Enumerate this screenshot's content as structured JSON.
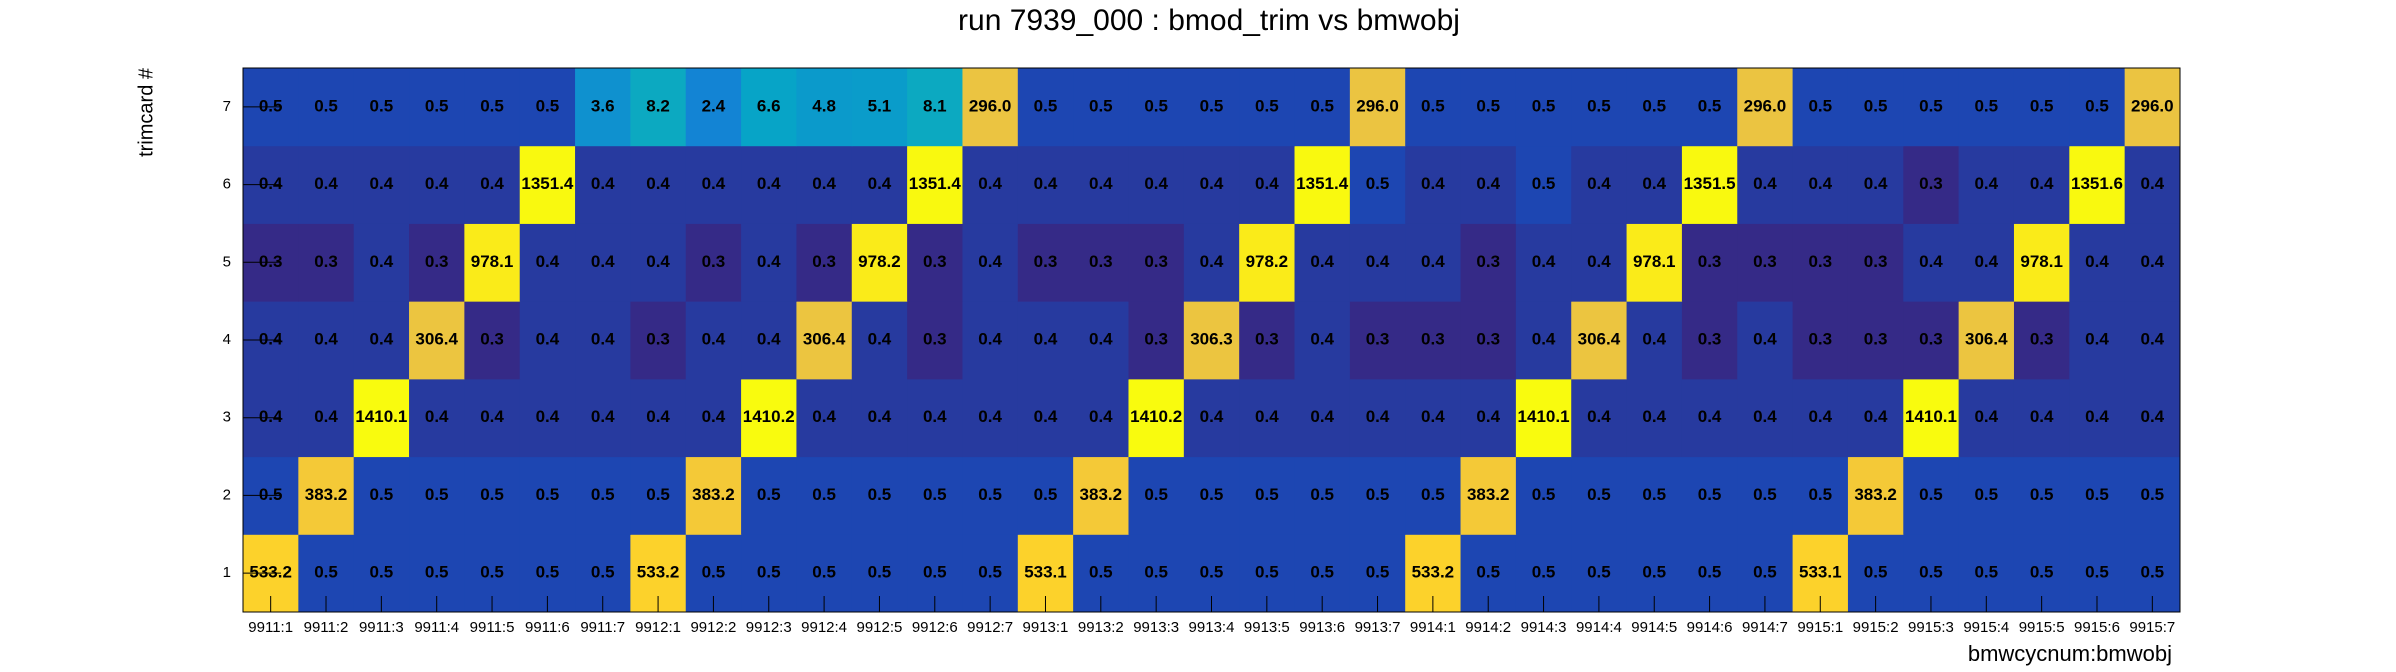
{
  "chart_data": {
    "type": "heatmap",
    "title": "run 7939_000 : bmod_trim vs bmwobj",
    "x_label": "bmwcycnum:bmwobj",
    "y_label": "trimcard #",
    "categories": [
      "9911:1",
      "9911:2",
      "9911:3",
      "9911:4",
      "9911:5",
      "9911:6",
      "9911:7",
      "9912:1",
      "9912:2",
      "9912:3",
      "9912:4",
      "9912:5",
      "9912:6",
      "9912:7",
      "9913:1",
      "9913:2",
      "9913:3",
      "9913:4",
      "9913:5",
      "9913:6",
      "9913:7",
      "9914:1",
      "9914:2",
      "9914:3",
      "9914:4",
      "9914:5",
      "9914:6",
      "9914:7",
      "9915:1",
      "9915:2",
      "9915:3",
      "9915:4",
      "9915:5",
      "9915:6",
      "9915:7"
    ],
    "ylim": [
      0.5,
      7.5
    ],
    "yticks": [
      1,
      2,
      3,
      4,
      5,
      6,
      7
    ],
    "logz": true,
    "palette": [
      "#352a87",
      "#0363e1",
      "#1485d4",
      "#06a7c6",
      "#38b99e",
      "#92bf73",
      "#d9ba56",
      "#fcce2e",
      "#f9fb0e"
    ],
    "z": [
      [
        533.2,
        0.5,
        0.5,
        0.5,
        0.5,
        0.5,
        0.5,
        533.2,
        0.5,
        0.5,
        0.5,
        0.5,
        0.5,
        0.5,
        533.1,
        0.5,
        0.5,
        0.5,
        0.5,
        0.5,
        0.5,
        533.2,
        0.5,
        0.5,
        0.5,
        0.5,
        0.5,
        0.5,
        533.1,
        0.5,
        0.5,
        0.5,
        0.5,
        0.5,
        0.5
      ],
      [
        0.5,
        383.2,
        0.5,
        0.5,
        0.5,
        0.5,
        0.5,
        0.5,
        383.2,
        0.5,
        0.5,
        0.5,
        0.5,
        0.5,
        0.5,
        383.2,
        0.5,
        0.5,
        0.5,
        0.5,
        0.5,
        0.5,
        383.2,
        0.5,
        0.5,
        0.5,
        0.5,
        0.5,
        0.5,
        383.2,
        0.5,
        0.5,
        0.5,
        0.5,
        0.5
      ],
      [
        0.4,
        0.4,
        1410.1,
        0.4,
        0.4,
        0.4,
        0.4,
        0.4,
        0.4,
        1410.2,
        0.4,
        0.4,
        0.4,
        0.4,
        0.4,
        0.4,
        1410.2,
        0.4,
        0.4,
        0.4,
        0.4,
        0.4,
        0.4,
        1410.1,
        0.4,
        0.4,
        0.4,
        0.4,
        0.4,
        0.4,
        1410.1,
        0.4,
        0.4,
        0.4,
        0.4
      ],
      [
        0.4,
        0.4,
        0.4,
        306.4,
        0.3,
        0.4,
        0.4,
        0.3,
        0.4,
        0.4,
        306.4,
        0.4,
        0.3,
        0.4,
        0.4,
        0.4,
        0.3,
        306.3,
        0.3,
        0.4,
        0.3,
        0.3,
        0.3,
        0.4,
        306.4,
        0.4,
        0.3,
        0.4,
        0.3,
        0.3,
        0.3,
        306.4,
        0.3,
        0.4,
        0.4
      ],
      [
        0.3,
        0.3,
        0.4,
        0.3,
        978.1,
        0.4,
        0.4,
        0.4,
        0.3,
        0.4,
        0.3,
        978.2,
        0.3,
        0.4,
        0.3,
        0.3,
        0.3,
        0.4,
        978.2,
        0.4,
        0.4,
        0.4,
        0.3,
        0.4,
        0.4,
        978.1,
        0.3,
        0.3,
        0.3,
        0.3,
        0.4,
        0.4,
        978.1,
        0.4,
        0.4
      ],
      [
        0.4,
        0.4,
        0.4,
        0.4,
        0.4,
        1351.4,
        0.4,
        0.4,
        0.4,
        0.4,
        0.4,
        0.4,
        1351.4,
        0.4,
        0.4,
        0.4,
        0.4,
        0.4,
        0.4,
        1351.4,
        0.5,
        0.4,
        0.4,
        0.5,
        0.4,
        0.4,
        1351.5,
        0.4,
        0.4,
        0.4,
        0.3,
        0.4,
        0.4,
        1351.6,
        0.4
      ],
      [
        0.5,
        0.5,
        0.5,
        0.5,
        0.5,
        0.5,
        3.6,
        8.2,
        2.4,
        6.6,
        4.8,
        5.1,
        8.1,
        296,
        0.5,
        0.5,
        0.5,
        0.5,
        0.5,
        0.5,
        296,
        0.5,
        0.5,
        0.5,
        0.5,
        0.5,
        0.5,
        296,
        0.5,
        0.5,
        0.5,
        0.5,
        0.5,
        0.5,
        296
      ]
    ],
    "value_labels": [
      [
        "533.2",
        "0.5",
        "0.5",
        "0.5",
        "0.5",
        "0.5",
        "0.5",
        "533.2",
        "0.5",
        "0.5",
        "0.5",
        "0.5",
        "0.5",
        "0.5",
        "533.1",
        "0.5",
        "0.5",
        "0.5",
        "0.5",
        "0.5",
        "0.5",
        "533.2",
        "0.5",
        "0.5",
        "0.5",
        "0.5",
        "0.5",
        "0.5",
        "533.1",
        "0.5",
        "0.5",
        "0.5",
        "0.5",
        "0.5",
        "0.5"
      ],
      [
        "0.5",
        "383.2",
        "0.5",
        "0.5",
        "0.5",
        "0.5",
        "0.5",
        "0.5",
        "383.2",
        "0.5",
        "0.5",
        "0.5",
        "0.5",
        "0.5",
        "0.5",
        "383.2",
        "0.5",
        "0.5",
        "0.5",
        "0.5",
        "0.5",
        "0.5",
        "383.2",
        "0.5",
        "0.5",
        "0.5",
        "0.5",
        "0.5",
        "0.5",
        "383.2",
        "0.5",
        "0.5",
        "0.5",
        "0.5",
        "0.5"
      ],
      [
        "0.4",
        "0.4",
        "1410.1",
        "0.4",
        "0.4",
        "0.4",
        "0.4",
        "0.4",
        "0.4",
        "1410.2",
        "0.4",
        "0.4",
        "0.4",
        "0.4",
        "0.4",
        "0.4",
        "1410.2",
        "0.4",
        "0.4",
        "0.4",
        "0.4",
        "0.4",
        "0.4",
        "1410.1",
        "0.4",
        "0.4",
        "0.4",
        "0.4",
        "0.4",
        "0.4",
        "1410.1",
        "0.4",
        "0.4",
        "0.4",
        "0.4"
      ],
      [
        "0.4",
        "0.4",
        "0.4",
        "306.4",
        "0.3",
        "0.4",
        "0.4",
        "0.3",
        "0.4",
        "0.4",
        "306.4",
        "0.4",
        "0.3",
        "0.4",
        "0.4",
        "0.4",
        "0.3",
        "306.3",
        "0.3",
        "0.4",
        "0.3",
        "0.3",
        "0.3",
        "0.4",
        "306.4",
        "0.4",
        "0.3",
        "0.4",
        "0.3",
        "0.3",
        "0.3",
        "306.4",
        "0.3",
        "0.4",
        "0.4"
      ],
      [
        "0.3",
        "0.3",
        "0.4",
        "0.3",
        "978.1",
        "0.4",
        "0.4",
        "0.4",
        "0.3",
        "0.4",
        "0.3",
        "978.2",
        "0.3",
        "0.4",
        "0.3",
        "0.3",
        "0.3",
        "0.4",
        "978.2",
        "0.4",
        "0.4",
        "0.4",
        "0.3",
        "0.4",
        "0.4",
        "978.1",
        "0.3",
        "0.3",
        "0.3",
        "0.3",
        "0.4",
        "0.4",
        "978.1",
        "0.4",
        "0.4"
      ],
      [
        "0.4",
        "0.4",
        "0.4",
        "0.4",
        "0.4",
        "1351.4",
        "0.4",
        "0.4",
        "0.4",
        "0.4",
        "0.4",
        "0.4",
        "1351.4",
        "0.4",
        "0.4",
        "0.4",
        "0.4",
        "0.4",
        "0.4",
        "1351.4",
        "0.5",
        "0.4",
        "0.4",
        "0.5",
        "0.4",
        "0.4",
        "1351.5",
        "0.4",
        "0.4",
        "0.4",
        "0.3",
        "0.4",
        "0.4",
        "1351.6",
        "0.4"
      ],
      [
        "0.5",
        "0.5",
        "0.5",
        "0.5",
        "0.5",
        "0.5",
        "3.6",
        "8.2",
        "2.4",
        "6.6",
        "4.8",
        "5.1",
        "8.1",
        "296.0",
        "0.5",
        "0.5",
        "0.5",
        "0.5",
        "0.5",
        "0.5",
        "296.0",
        "0.5",
        "0.5",
        "0.5",
        "0.5",
        "0.5",
        "0.5",
        "296.0",
        "0.5",
        "0.5",
        "0.5",
        "0.5",
        "0.5",
        "0.5",
        "296.0"
      ]
    ]
  }
}
